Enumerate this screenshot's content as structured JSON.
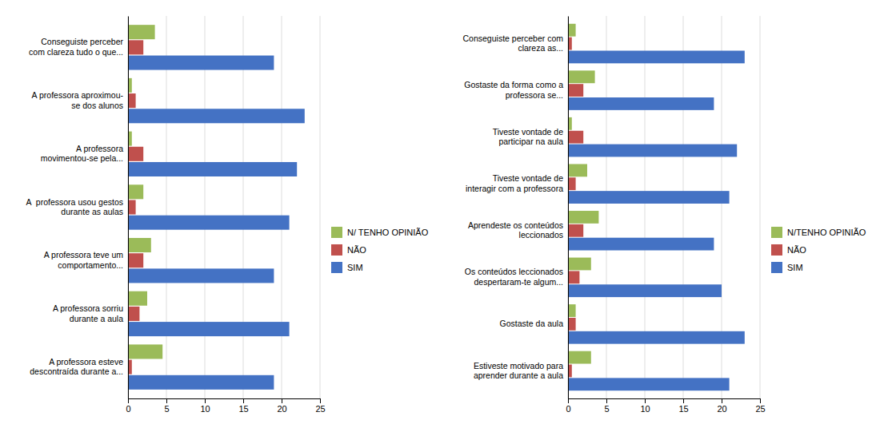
{
  "chart_data": [
    {
      "type": "bar",
      "orientation": "horizontal",
      "categories": [
        "A professora esteve\ndescontraída durante a...",
        "A professora sorriu\ndurante a aula",
        "A professora teve um\ncomportamento...",
        "A  professora usou gestos\ndurante as aulas",
        "A professora\nmovimentou-se pela...",
        "A professora aproximou-\nse dos alunos",
        "Conseguiste perceber\ncom clareza tudo o que..."
      ],
      "series": [
        {
          "name": "SIM",
          "color": "#4472C4",
          "values": [
            19,
            21,
            19,
            21,
            22,
            23,
            19
          ]
        },
        {
          "name": "NÃO",
          "color": "#C0504D",
          "values": [
            0.5,
            1.5,
            2.0,
            1.0,
            2.0,
            1.0,
            2.0
          ]
        },
        {
          "name": "N/ TENHO OPINIÃO",
          "color": "#9BBB59",
          "values": [
            4.5,
            2.5,
            3.0,
            2.0,
            0.5,
            0.5,
            3.5
          ]
        }
      ],
      "xlim": [
        0,
        25
      ],
      "xticks": [
        0,
        5,
        10,
        15,
        20,
        25
      ],
      "grid": true,
      "legend": "right"
    },
    {
      "type": "bar",
      "orientation": "horizontal",
      "categories": [
        "Estiveste motivado para\naprender durante a aula",
        "Gostaste da aula",
        "Os conteúdos leccionados\ndespertaram-te algum...",
        "Aprendeste os conteúdos\nleccionados",
        "Tiveste vontade de\ninteragir com a professora",
        "Tiveste vontade de\nparticipar na aula",
        "Gostaste da forma como a\nprofessora se...",
        "Conseguiste perceber com\nclareza as..."
      ],
      "series": [
        {
          "name": "SIM",
          "color": "#4472C4",
          "values": [
            21,
            23,
            20,
            19,
            21,
            22,
            19,
            23
          ]
        },
        {
          "name": "NÃO",
          "color": "#C0504D",
          "values": [
            0.5,
            1.0,
            1.5,
            2.0,
            1.0,
            2.0,
            2.0,
            0.5
          ]
        },
        {
          "name": "N/TENHO OPINIÃO",
          "color": "#9BBB59",
          "values": [
            3.0,
            1.0,
            3.0,
            4.0,
            2.5,
            0.5,
            3.5,
            1.0
          ]
        }
      ],
      "xlim": [
        0,
        25
      ],
      "xticks": [
        0,
        5,
        10,
        15,
        20,
        25
      ],
      "grid": true,
      "legend": "right"
    }
  ]
}
